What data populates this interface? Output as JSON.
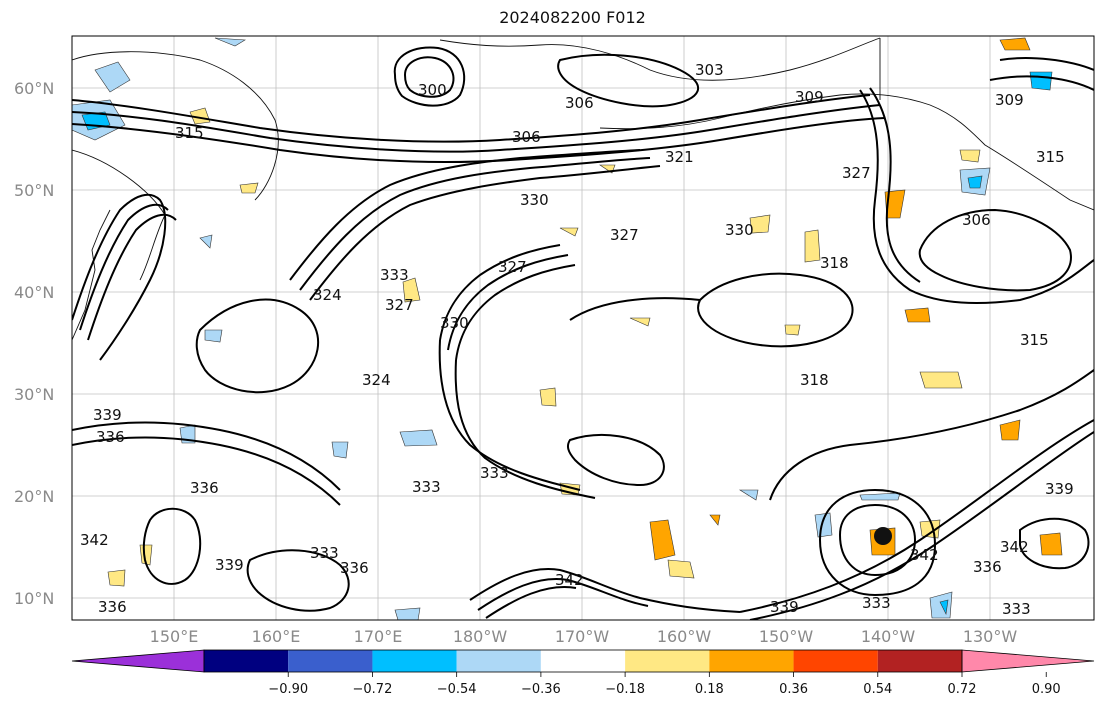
{
  "title": "2024082200 F012",
  "lat_labels": [
    "10°N",
    "20°N",
    "30°N",
    "40°N",
    "50°N",
    "60°N"
  ],
  "lon_labels": [
    "150°E",
    "160°E",
    "170°E",
    "180°W",
    "170°W",
    "160°W",
    "150°W",
    "140°W",
    "130°W"
  ],
  "colorbar": {
    "ticks": [
      "−0.90",
      "−0.72",
      "−0.54",
      "−0.36",
      "−0.18",
      "0.18",
      "0.36",
      "0.54",
      "0.72",
      "0.90"
    ],
    "colors": [
      "#9b30d9",
      "#000080",
      "#3a5fcd",
      "#00bfff",
      "#add8f6",
      "#ffffff",
      "#ffe884",
      "#ffa500",
      "#ff4500",
      "#b22222",
      "#ff88aa"
    ]
  },
  "contour_labels": [
    "300",
    "303",
    "306",
    "306",
    "309",
    "309",
    "315",
    "315",
    "315",
    "318",
    "318",
    "321",
    "324",
    "324",
    "327",
    "327",
    "327",
    "327",
    "330",
    "330",
    "330",
    "333",
    "333",
    "333",
    "333",
    "333",
    "336",
    "336",
    "336",
    "336",
    "339",
    "339",
    "339",
    "339",
    "342",
    "342",
    "342",
    "342",
    "306",
    "336",
    "333"
  ]
}
